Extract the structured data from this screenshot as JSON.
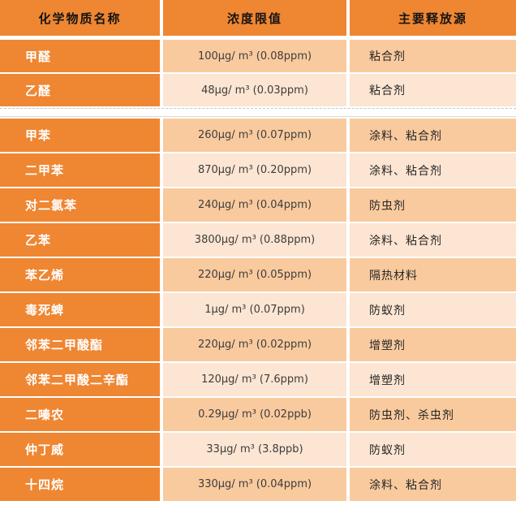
{
  "colors": {
    "orange": "#EF8632",
    "band_dark": "#F9CA9E",
    "band_light": "#FCE5D2"
  },
  "table": {
    "headers": [
      "化学物质名称",
      "浓度限值",
      "主要释放源"
    ],
    "sections": [
      {
        "rows": [
          {
            "name": "甲醛",
            "limit": "100μg/ m³ (0.08ppm)",
            "source": "粘合剂"
          },
          {
            "name": "乙醛",
            "limit": "48μg/ m³ (0.03ppm)",
            "source": "粘合剂"
          }
        ]
      },
      {
        "rows": [
          {
            "name": "甲苯",
            "limit": "260μg/ m³ (0.07ppm)",
            "source": "涂料、粘合剂"
          },
          {
            "name": "二甲苯",
            "limit": "870μg/ m³ (0.20ppm)",
            "source": "涂料、粘合剂"
          },
          {
            "name": "对二氯苯",
            "limit": "240μg/ m³ (0.04ppm)",
            "source": "防虫剂"
          },
          {
            "name": "乙苯",
            "limit": "3800μg/ m³ (0.88ppm)",
            "source": "涂料、粘合剂"
          },
          {
            "name": "苯乙烯",
            "limit": "220μg/ m³ (0.05ppm)",
            "source": "隔热材料"
          },
          {
            "name": "毒死蜱",
            "limit": "1μg/ m³ (0.07ppm)",
            "source": "防蚁剂"
          },
          {
            "name": "邻苯二甲酸酯",
            "limit": "220μg/ m³ (0.02ppm)",
            "source": "增塑剂"
          },
          {
            "name": "邻苯二甲酸二辛酯",
            "limit": "120μg/ m³ (7.6ppm)",
            "source": "增塑剂"
          },
          {
            "name": "二嗪农",
            "limit": "0.29μg/ m³ (0.02ppb)",
            "source": "防虫剂、杀虫剂"
          },
          {
            "name": "仲丁威",
            "limit": "33μg/ m³ (3.8ppb)",
            "source": "防蚁剂"
          },
          {
            "name": "十四烷",
            "limit": "330μg/ m³ (0.04ppm)",
            "source": "涂料、粘合剂"
          }
        ]
      }
    ]
  }
}
